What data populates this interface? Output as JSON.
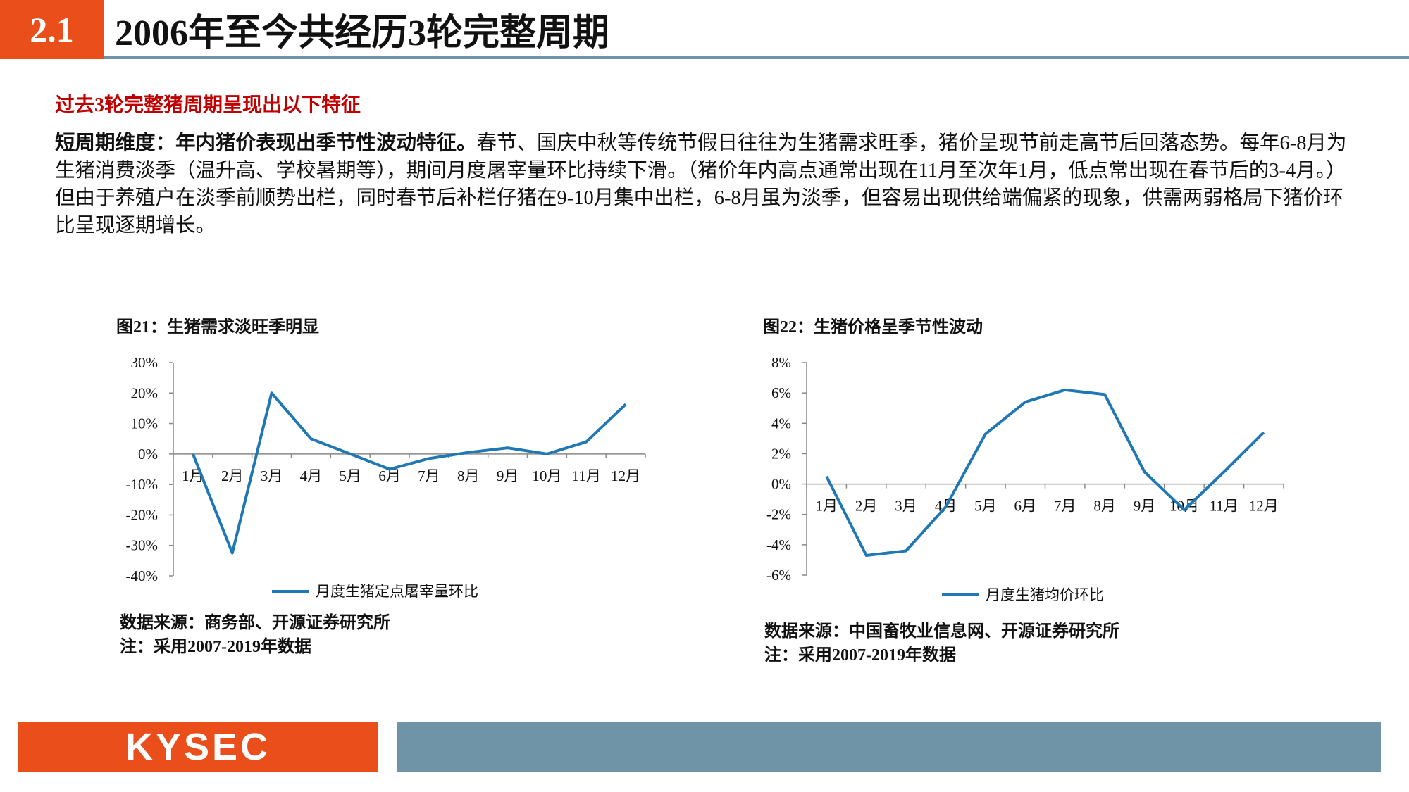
{
  "header": {
    "section_number": "2.1",
    "title": "2006年至今共经历3轮完整周期"
  },
  "subheading": "过去3轮完整猪周期呈现出以下特征",
  "body": {
    "lead": "短周期维度：年内猪价表现出季节性波动特征。",
    "text": "春节、国庆中秋等传统节假日往往为生猪需求旺季，猪价呈现节前走高节后回落态势。每年6-8月为生猪消费淡季（温升高、学校暑期等），期间月度屠宰量环比持续下滑。（猪价年内高点通常出现在11月至次年1月，低点常出现在春节后的3-4月。）但由于养殖户在淡季前顺势出栏，同时春节后补栏仔猪在9-10月集中出栏，6-8月虽为淡季，但容易出现供给端偏紧的现象，供需两弱格局下猪价环比呈现逐期增长。"
  },
  "colors": {
    "accent": "#e94e1b",
    "rule": "#6f93a7",
    "series": "#1f77b4",
    "subheading": "#c00000"
  },
  "chart_data": [
    {
      "type": "line",
      "title": "图21：生猪需求淡旺季明显",
      "categories": [
        "1月",
        "2月",
        "3月",
        "4月",
        "5月",
        "6月",
        "7月",
        "8月",
        "9月",
        "10月",
        "11月",
        "12月"
      ],
      "y_ticks": [
        "30%",
        "20%",
        "10%",
        "0%",
        "-10%",
        "-20%",
        "-30%",
        "-40%"
      ],
      "ylim": [
        -40,
        30
      ],
      "series": [
        {
          "name": "月度生猪定点屠宰量环比",
          "values": [
            0,
            -32.5,
            20,
            5,
            0,
            -5,
            -1.5,
            0.5,
            2,
            0,
            4,
            16.3
          ]
        }
      ],
      "legend": "bottom",
      "source": "数据来源：商务部、开源证券研究所",
      "note": "注：采用2007-2019年数据"
    },
    {
      "type": "line",
      "title": "图22：生猪价格呈季节性波动",
      "categories": [
        "1月",
        "2月",
        "3月",
        "4月",
        "5月",
        "6月",
        "7月",
        "8月",
        "9月",
        "10月",
        "11月",
        "12月"
      ],
      "y_ticks": [
        "8%",
        "6%",
        "4%",
        "2%",
        "0%",
        "-2%",
        "-4%",
        "-6%"
      ],
      "ylim": [
        -6,
        8
      ],
      "series": [
        {
          "name": "月度生猪均价环比",
          "values": [
            0.5,
            -4.7,
            -4.4,
            -1.5,
            3.3,
            5.4,
            6.2,
            5.9,
            0.8,
            -1.7,
            0.8,
            3.4
          ]
        }
      ],
      "legend": "bottom",
      "source": "数据来源：中国畜牧业信息网、开源证券研究所",
      "note": "注：采用2007-2019年数据"
    }
  ],
  "footer": {
    "logo": "KYSEC"
  }
}
